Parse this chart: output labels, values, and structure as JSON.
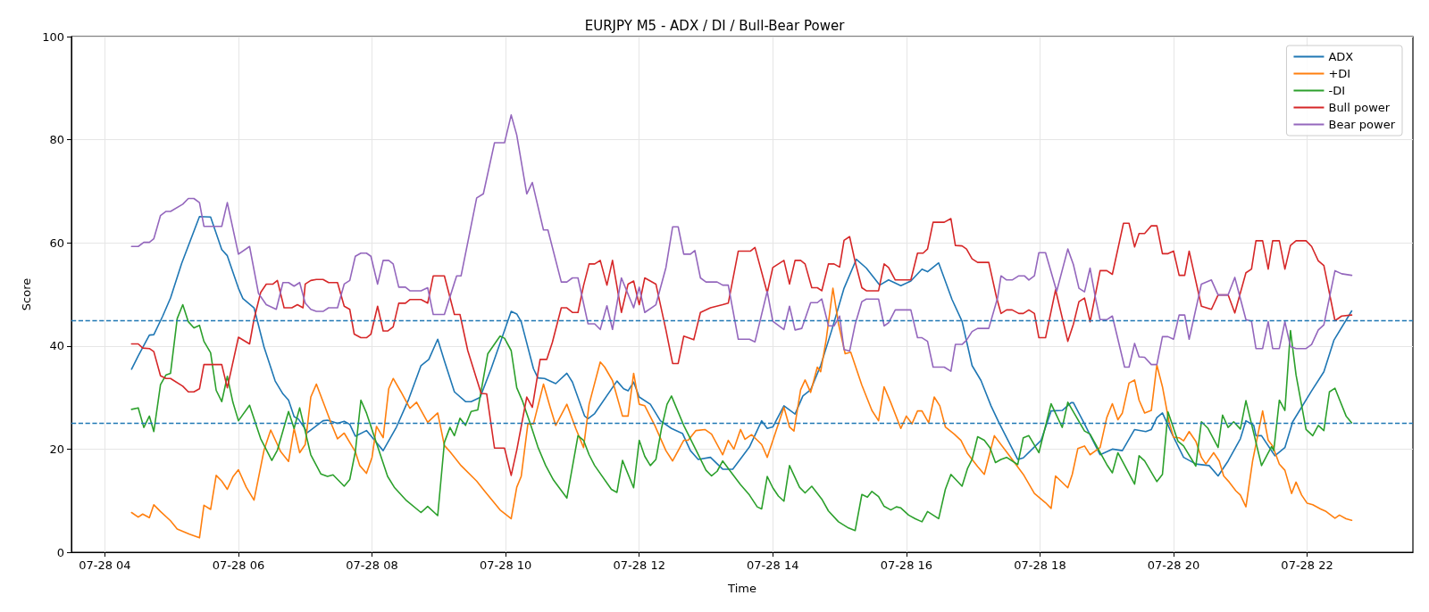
{
  "chart_data": {
    "type": "line",
    "title": "EURJPY M5 - ADX / DI / Bull-Bear Power",
    "xlabel": "Time",
    "ylabel": "Score",
    "xlim": [
      "--07-28T03:30",
      "--07-28T23:35"
    ],
    "ylim": [
      0,
      100
    ],
    "xticks": [
      {
        "value": "--07-28T04:00",
        "label": "07-28 04"
      },
      {
        "value": "--07-28T06:00",
        "label": "07-28 06"
      },
      {
        "value": "--07-28T08:00",
        "label": "07-28 08"
      },
      {
        "value": "--07-28T10:00",
        "label": "07-28 10"
      },
      {
        "value": "--07-28T12:00",
        "label": "07-28 12"
      },
      {
        "value": "--07-28T14:00",
        "label": "07-28 14"
      },
      {
        "value": "--07-28T16:00",
        "label": "07-28 16"
      },
      {
        "value": "--07-28T18:00",
        "label": "07-28 18"
      },
      {
        "value": "--07-28T20:00",
        "label": "07-28 20"
      },
      {
        "value": "--07-28T22:00",
        "label": "07-28 22"
      }
    ],
    "yticks": [
      0,
      20,
      40,
      60,
      80,
      100
    ],
    "grid": true,
    "legend": "top right",
    "marker": "none",
    "line_style": "solid",
    "ref_lines": [
      {
        "axis": "y",
        "value": 45,
        "color": "#1f77b4",
        "line_style": "dashed"
      },
      {
        "axis": "y",
        "value": 25,
        "color": "#1f77b4",
        "line_style": "dashed"
      }
    ],
    "series": [
      {
        "name": "ADX",
        "color": "#1f77b4",
        "x": [
          "--07-28T04:24",
          "--07-28T04:30",
          "--07-28T04:40",
          "--07-28T04:44",
          "--07-28T04:52",
          "--07-28T04:59",
          "--07-28T05:09",
          "--07-28T05:25",
          "--07-28T05:35",
          "--07-28T05:45",
          "--07-28T05:50",
          "--07-28T06:00",
          "--07-28T06:04",
          "--07-28T06:14",
          "--07-28T06:23",
          "--07-28T06:33",
          "--07-28T06:40",
          "--07-28T06:45",
          "--07-28T06:50",
          "--07-28T06:54",
          "--07-28T07:02",
          "--07-28T07:16",
          "--07-28T07:20",
          "--07-28T07:29",
          "--07-28T07:35",
          "--07-28T07:40",
          "--07-28T07:45",
          "--07-28T07:55",
          "--07-28T08:10",
          "--07-28T08:22",
          "--07-28T08:33",
          "--07-28T08:44",
          "--07-28T08:51",
          "--07-28T08:59",
          "--07-28T09:05",
          "--07-28T09:14",
          "--07-28T09:24",
          "--07-28T09:29",
          "--07-28T09:37",
          "--07-28T09:47",
          "--07-28T10:05",
          "--07-28T10:10",
          "--07-28T10:14",
          "--07-28T10:25",
          "--07-28T10:29",
          "--07-28T10:35",
          "--07-28T10:45",
          "--07-28T10:55",
          "--07-28T11:00",
          "--07-28T11:11",
          "--07-28T11:14",
          "--07-28T11:20",
          "--07-28T11:40",
          "--07-28T11:46",
          "--07-28T11:50",
          "--07-28T11:55",
          "--07-28T12:00",
          "--07-28T12:10",
          "--07-28T12:19",
          "--07-28T12:29",
          "--07-28T12:39",
          "--07-28T12:46",
          "--07-28T12:53",
          "--07-28T13:04",
          "--07-28T13:15",
          "--07-28T13:24",
          "--07-28T13:39",
          "--07-28T13:50",
          "--07-28T13:55",
          "--07-28T14:00",
          "--07-28T14:10",
          "--07-28T14:20",
          "--07-28T14:27",
          "--07-28T14:34",
          "--07-28T14:43",
          "--07-28T14:53",
          "--07-28T15:04",
          "--07-28T15:15",
          "--07-28T15:24",
          "--07-28T15:36",
          "--07-28T15:44",
          "--07-28T15:55",
          "--07-28T16:04",
          "--07-28T16:14",
          "--07-28T16:19",
          "--07-28T16:29",
          "--07-28T16:41",
          "--07-28T16:50",
          "--07-28T16:59",
          "--07-28T17:07",
          "--07-28T17:16",
          "--07-28T17:23",
          "--07-28T17:40",
          "--07-28T17:45",
          "--07-28T18:01",
          "--07-28T18:10",
          "--07-28T18:20",
          "--07-28T18:28",
          "--07-28T18:30",
          "--07-28T18:40",
          "--07-28T18:54",
          "--07-28T19:05",
          "--07-28T19:14",
          "--07-28T19:25",
          "--07-28T19:35",
          "--07-28T19:40",
          "--07-28T19:45",
          "--07-28T19:50",
          "--07-28T19:58",
          "--07-28T20:09",
          "--07-28T20:20",
          "--07-28T20:32",
          "--07-28T20:40",
          "--07-28T20:49",
          "--07-28T21:00",
          "--07-28T21:05",
          "--07-28T21:12",
          "--07-28T21:14",
          "--07-28T21:19",
          "--07-28T21:31",
          "--07-28T21:40",
          "--07-28T21:47",
          "--07-28T22:04",
          "--07-28T22:15",
          "--07-28T22:24",
          "--07-28T22:40"
        ],
        "values": [
          35.5,
          38.1,
          42.1,
          42.2,
          45.8,
          49.3,
          56,
          65.1,
          65,
          58.7,
          57.5,
          51.2,
          49.2,
          47.4,
          39.8,
          33.2,
          30.7,
          29.5,
          26.3,
          25.8,
          23.2,
          25.5,
          25.6,
          25,
          25.4,
          24.8,
          22.5,
          23.6,
          19.7,
          24.3,
          29.7,
          36.2,
          37.4,
          41.3,
          37.1,
          31.1,
          29.2,
          29.2,
          30,
          35.6,
          46.7,
          46.2,
          44.7,
          35.6,
          33.8,
          33.7,
          32.7,
          34.7,
          33,
          26.4,
          25.9,
          26.9,
          33.2,
          31.7,
          31.3,
          33,
          30.1,
          28.7,
          25.5,
          24,
          23,
          19.7,
          18,
          18.4,
          16.1,
          16.1,
          20.4,
          25.5,
          24,
          24.3,
          28.4,
          26.8,
          30.3,
          31.5,
          36.2,
          43.1,
          51.2,
          56.8,
          55.1,
          51.8,
          52.8,
          51.7,
          52.6,
          54.9,
          54.4,
          56.1,
          49,
          44.8,
          36.2,
          33.3,
          28.4,
          25.2,
          18,
          18.3,
          21.7,
          27.4,
          27.5,
          29,
          29,
          24.9,
          18.9,
          20,
          19.7,
          23.8,
          23.4,
          23.8,
          26.1,
          27,
          23.2,
          18.4,
          17.1,
          16.8,
          14.8,
          17.7,
          22,
          25.5,
          24.6,
          22.6,
          22.6,
          18.7,
          20.3,
          25.3,
          31.3,
          35,
          41.1,
          46.8
        ]
      },
      {
        "name": "+DI",
        "color": "#ff7f0e",
        "x": [
          "--07-28T04:24",
          "--07-28T04:30",
          "--07-28T04:34",
          "--07-28T04:40",
          "--07-28T04:44",
          "--07-28T04:50",
          "--07-28T04:59",
          "--07-28T05:05",
          "--07-28T05:16",
          "--07-28T05:25",
          "--07-28T05:29",
          "--07-28T05:35",
          "--07-28T05:40",
          "--07-28T05:45",
          "--07-28T05:50",
          "--07-28T05:55",
          "--07-28T06:00",
          "--07-28T06:07",
          "--07-28T06:14",
          "--07-28T06:23",
          "--07-28T06:29",
          "--07-28T06:38",
          "--07-28T06:45",
          "--07-28T06:50",
          "--07-28T06:55",
          "--07-28T07:00",
          "--07-28T07:05",
          "--07-28T07:10",
          "--07-28T07:16",
          "--07-28T07:24",
          "--07-28T07:29",
          "--07-28T07:35",
          "--07-28T07:45",
          "--07-28T07:49",
          "--07-28T07:55",
          "--07-28T08:00",
          "--07-28T08:04",
          "--07-28T08:10",
          "--07-28T08:15",
          "--07-28T08:19",
          "--07-28T08:26",
          "--07-28T08:34",
          "--07-28T08:40",
          "--07-28T08:50",
          "--07-28T08:59",
          "--07-28T09:05",
          "--07-28T09:10",
          "--07-28T09:20",
          "--07-28T09:34",
          "--07-28T09:41",
          "--07-28T09:55",
          "--07-28T10:05",
          "--07-28T10:10",
          "--07-28T10:14",
          "--07-28T10:20",
          "--07-28T10:25",
          "--07-28T10:34",
          "--07-28T10:40",
          "--07-28T10:45",
          "--07-28T10:55",
          "--07-28T11:03",
          "--07-28T11:10",
          "--07-28T11:15",
          "--07-28T11:25",
          "--07-28T11:29",
          "--07-28T11:36",
          "--07-28T11:45",
          "--07-28T11:50",
          "--07-28T11:55",
          "--07-28T12:00",
          "--07-28T12:05",
          "--07-28T12:14",
          "--07-28T12:24",
          "--07-28T12:30",
          "--07-28T12:40",
          "--07-28T12:44",
          "--07-28T12:51",
          "--07-28T12:59",
          "--07-28T13:05",
          "--07-28T13:15",
          "--07-28T13:20",
          "--07-28T13:25",
          "--07-28T13:31",
          "--07-28T13:35",
          "--07-28T13:41",
          "--07-28T13:50",
          "--07-28T13:55",
          "--07-28T14:10",
          "--07-28T14:15",
          "--07-28T14:19",
          "--07-28T14:25",
          "--07-28T14:29",
          "--07-28T14:34",
          "--07-28T14:40",
          "--07-28T14:43",
          "--07-28T14:48",
          "--07-28T14:54",
          "--07-28T14:59",
          "--07-28T15:05",
          "--07-28T15:10",
          "--07-28T15:20",
          "--07-28T15:29",
          "--07-28T15:35",
          "--07-28T15:40",
          "--07-28T15:46",
          "--07-28T15:55",
          "--07-28T16:00",
          "--07-28T16:05",
          "--07-28T16:10",
          "--07-28T16:14",
          "--07-28T16:20",
          "--07-28T16:25",
          "--07-28T16:30",
          "--07-28T16:35",
          "--07-28T16:43",
          "--07-28T16:49",
          "--07-28T16:55",
          "--07-28T17:04",
          "--07-28T17:10",
          "--07-28T17:19",
          "--07-28T17:34",
          "--07-28T17:45",
          "--07-28T17:55",
          "--07-28T18:05",
          "--07-28T18:10",
          "--07-28T18:14",
          "--07-28T18:25",
          "--07-28T18:29",
          "--07-28T18:34",
          "--07-28T18:40",
          "--07-28T18:45",
          "--07-28T18:54",
          "--07-28T19:00",
          "--07-28T19:05",
          "--07-28T19:10",
          "--07-28T19:14",
          "--07-28T19:20",
          "--07-28T19:25",
          "--07-28T19:29",
          "--07-28T19:34",
          "--07-28T19:40",
          "--07-28T19:45",
          "--07-28T19:50",
          "--07-28T19:56",
          "--07-28T20:00",
          "--07-28T20:05",
          "--07-28T20:09",
          "--07-28T20:14",
          "--07-28T20:20",
          "--07-28T20:25",
          "--07-28T20:29",
          "--07-28T20:36",
          "--07-28T20:41",
          "--07-28T20:45",
          "--07-28T20:50",
          "--07-28T20:56",
          "--07-28T21:00",
          "--07-28T21:05",
          "--07-28T21:11",
          "--07-28T21:20",
          "--07-28T21:25",
          "--07-28T21:29",
          "--07-28T21:35",
          "--07-28T21:40",
          "--07-28T21:46",
          "--07-28T21:50",
          "--07-28T21:55",
          "--07-28T22:00",
          "--07-28T22:05",
          "--07-28T22:12",
          "--07-28T22:17",
          "--07-28T22:25",
          "--07-28T22:29",
          "--07-28T22:35",
          "--07-28T22:40"
        ],
        "values": [
          7.7,
          6.8,
          7.4,
          6.7,
          9.2,
          7.9,
          6.1,
          4.5,
          3.5,
          2.8,
          9.1,
          8.3,
          14.9,
          13.8,
          12.2,
          14.6,
          16,
          12.6,
          10.1,
          19.8,
          23.7,
          19.5,
          17.6,
          24,
          19.3,
          20.9,
          30.1,
          32.6,
          29.2,
          24.6,
          22,
          23.1,
          19.5,
          16.8,
          15.3,
          18.4,
          24.4,
          22.2,
          31.7,
          33.7,
          31.1,
          27.9,
          29.1,
          25.2,
          27,
          20.7,
          19.5,
          16.8,
          13.8,
          11.9,
          8.2,
          6.5,
          12.6,
          14.7,
          24.9,
          24.9,
          32.6,
          28.1,
          24.6,
          28.7,
          24,
          20.3,
          28.7,
          36.9,
          35.9,
          33.3,
          26.4,
          26.4,
          34.7,
          28.7,
          28.4,
          24.6,
          19.7,
          17.7,
          21.7,
          21.7,
          23.6,
          23.8,
          22.9,
          18.9,
          21.7,
          20,
          23.8,
          21.9,
          22.8,
          20.9,
          18.4,
          28.1,
          24.3,
          23.5,
          31.5,
          33.4,
          31,
          35.9,
          35,
          41.3,
          51.2,
          44.3,
          38.5,
          38.8,
          32.4,
          27.5,
          25.5,
          32.1,
          29,
          24,
          26.4,
          24.9,
          27.4,
          27.4,
          25.1,
          30.1,
          28.4,
          24.3,
          22.9,
          21.7,
          19.1,
          16.6,
          15.1,
          22.6,
          18.3,
          15.1,
          11.4,
          9.6,
          8.5,
          14.8,
          12.5,
          15.1,
          20.1,
          20.6,
          18.9,
          20.3,
          26.1,
          28.8,
          25.7,
          27,
          32.8,
          33.4,
          29.5,
          27,
          27.5,
          36.3,
          32.1,
          25.2,
          22.3,
          22.2,
          21.6,
          23.4,
          21.5,
          18.4,
          17.1,
          19.3,
          17.7,
          14.8,
          13.6,
          11.9,
          11.1,
          8.8,
          17.7,
          27.4,
          21.7,
          20.6,
          17.1,
          15.9,
          11.4,
          13.6,
          11.1,
          9.5,
          9.2,
          8.4,
          7.9,
          6.6,
          7.2,
          6.5,
          6.2
        ]
      },
      {
        "name": "-DI",
        "color": "#2ca02c",
        "x": [
          "--07-28T04:24",
          "--07-28T04:30",
          "--07-28T04:35",
          "--07-28T04:40",
          "--07-28T04:44",
          "--07-28T04:50",
          "--07-28T04:55",
          "--07-28T04:59",
          "--07-28T05:05",
          "--07-28T05:10",
          "--07-28T05:15",
          "--07-28T05:20",
          "--07-28T05:25",
          "--07-28T05:29",
          "--07-28T05:35",
          "--07-28T05:40",
          "--07-28T05:45",
          "--07-28T05:50",
          "--07-28T05:55",
          "--07-28T06:00",
          "--07-28T06:10",
          "--07-28T06:20",
          "--07-28T06:30",
          "--07-28T06:35",
          "--07-28T06:45",
          "--07-28T06:50",
          "--07-28T06:55",
          "--07-28T07:05",
          "--07-28T07:14",
          "--07-28T07:20",
          "--07-28T07:25",
          "--07-28T07:35",
          "--07-28T07:40",
          "--07-28T07:45",
          "--07-28T07:50",
          "--07-28T07:55",
          "--07-28T08:14",
          "--07-28T08:20",
          "--07-28T08:31",
          "--07-28T08:44",
          "--07-28T08:50",
          "--07-28T08:59",
          "--07-28T09:05",
          "--07-28T09:10",
          "--07-28T09:14",
          "--07-28T09:19",
          "--07-28T09:24",
          "--07-28T09:29",
          "--07-28T09:35",
          "--07-28T09:44",
          "--07-28T09:55",
          "--07-28T09:59",
          "--07-28T10:05",
          "--07-28T10:10",
          "--07-28T10:15",
          "--07-28T10:23",
          "--07-28T10:29",
          "--07-28T10:36",
          "--07-28T10:43",
          "--07-28T10:55",
          "--07-28T11:05",
          "--07-28T11:10",
          "--07-28T11:15",
          "--07-28T11:20",
          "--07-28T11:35",
          "--07-28T11:40",
          "--07-28T11:45",
          "--07-28T11:55",
          "--07-28T12:00",
          "--07-28T12:05",
          "--07-28T12:10",
          "--07-28T12:15",
          "--07-28T12:20",
          "--07-28T12:25",
          "--07-28T12:29",
          "--07-28T12:40",
          "--07-28T12:52",
          "--07-28T13:00",
          "--07-28T13:05",
          "--07-28T13:10",
          "--07-28T13:15",
          "--07-28T13:24",
          "--07-28T13:31",
          "--07-28T13:39",
          "--07-28T13:46",
          "--07-28T13:50",
          "--07-28T13:55",
          "--07-28T14:00",
          "--07-28T14:05",
          "--07-28T14:10",
          "--07-28T14:15",
          "--07-28T14:24",
          "--07-28T14:29",
          "--07-28T14:35",
          "--07-28T14:44",
          "--07-28T14:50",
          "--07-28T14:59",
          "--07-28T15:08",
          "--07-28T15:14",
          "--07-28T15:20",
          "--07-28T15:25",
          "--07-28T15:29",
          "--07-28T15:35",
          "--07-28T15:40",
          "--07-28T15:46",
          "--07-28T15:51",
          "--07-28T15:55",
          "--07-28T16:02",
          "--07-28T16:08",
          "--07-28T16:14",
          "--07-28T16:19",
          "--07-28T16:29",
          "--07-28T16:35",
          "--07-28T16:40",
          "--07-28T16:50",
          "--07-28T16:55",
          "--07-28T16:59",
          "--07-28T17:04",
          "--07-28T17:10",
          "--07-28T17:15",
          "--07-28T17:20",
          "--07-28T17:25",
          "--07-28T17:30",
          "--07-28T17:40",
          "--07-28T17:45",
          "--07-28T17:50",
          "--07-28T17:59",
          "--07-28T18:10",
          "--07-28T18:20",
          "--07-28T18:25",
          "--07-28T18:40",
          "--07-28T18:45",
          "--07-28T19:00",
          "--07-28T19:05",
          "--07-28T19:10",
          "--07-28T19:25",
          "--07-28T19:29",
          "--07-28T19:34",
          "--07-28T19:45",
          "--07-28T19:50",
          "--07-28T19:55",
          "--07-28T20:04",
          "--07-28T20:09",
          "--07-28T20:20",
          "--07-28T20:25",
          "--07-28T20:31",
          "--07-28T20:40",
          "--07-28T20:44",
          "--07-28T20:49",
          "--07-28T20:54",
          "--07-28T21:00",
          "--07-28T21:05",
          "--07-28T21:19",
          "--07-28T21:28",
          "--07-28T21:30",
          "--07-28T21:35",
          "--07-28T21:40",
          "--07-28T21:45",
          "--07-28T21:50",
          "--07-28T21:59",
          "--07-28T22:05",
          "--07-28T22:10",
          "--07-28T22:15",
          "--07-28T22:20",
          "--07-28T22:25",
          "--07-28T22:35",
          "--07-28T22:40"
        ],
        "values": [
          27.7,
          28,
          24.2,
          26.4,
          23.4,
          32.5,
          34.4,
          34.7,
          45.3,
          48,
          44.7,
          43.5,
          44,
          40.9,
          38.7,
          31.4,
          29.2,
          34.1,
          29.1,
          25.5,
          28.5,
          22,
          17.8,
          19.8,
          27.3,
          24,
          28,
          18.9,
          15.2,
          14.7,
          15,
          12.8,
          14.1,
          19.5,
          29.5,
          27,
          14.7,
          12.6,
          10,
          7.7,
          8.9,
          7.1,
          21.3,
          24.2,
          22.6,
          26,
          24.6,
          27.3,
          27.6,
          38.5,
          41.9,
          41.5,
          39.1,
          31.9,
          29.4,
          24.4,
          20.4,
          16.8,
          14,
          10.5,
          22.6,
          21.7,
          18.9,
          16.8,
          12.2,
          11.6,
          17.8,
          12.5,
          21.7,
          18.6,
          16.8,
          18,
          24,
          28.7,
          30.3,
          24.6,
          19.4,
          15.9,
          14.8,
          15.7,
          17.7,
          15.1,
          13.1,
          11.1,
          8.8,
          8.4,
          14.7,
          12.5,
          10.9,
          9.9,
          16.8,
          12.6,
          11.5,
          12.8,
          10.3,
          8,
          5.9,
          4.7,
          4.2,
          11.2,
          10.7,
          11.8,
          10.8,
          8.9,
          8.2,
          8.8,
          8.6,
          7.2,
          6.5,
          5.9,
          7.9,
          6.5,
          12.2,
          15.1,
          12.8,
          16.3,
          18,
          22.4,
          21.7,
          20.3,
          17.4,
          18,
          18.4,
          17,
          22.2,
          22.6,
          19.3,
          28.8,
          24.2,
          29.1,
          23.5,
          22.9,
          17,
          15.4,
          19.3,
          13.2,
          18.7,
          17.7,
          13.7,
          15.1,
          27.2,
          21.5,
          20.6,
          16.7,
          25.3,
          24,
          20.3,
          26.6,
          24.2,
          25.3,
          23.9,
          29.4,
          16.8,
          20.5,
          19.7,
          29.5,
          27.5,
          43,
          34.4,
          23.8,
          22.6,
          24.6,
          23.6,
          31.1,
          31.8,
          26.4,
          25.1
        ]
      },
      {
        "name": "Bull power",
        "color": "#d62728",
        "x": [
          "--07-28T04:24",
          "--07-28T04:30",
          "--07-28T04:34",
          "--07-28T04:40",
          "--07-28T04:44",
          "--07-28T04:50",
          "--07-28T04:55",
          "--07-28T04:59",
          "--07-28T05:10",
          "--07-28T05:15",
          "--07-28T05:20",
          "--07-28T05:25",
          "--07-28T05:29",
          "--07-28T05:45",
          "--07-28T05:50",
          "--07-28T06:00",
          "--07-28T06:10",
          "--07-28T06:14",
          "--07-28T06:20",
          "--07-28T06:25",
          "--07-28T06:31",
          "--07-28T06:35",
          "--07-28T06:41",
          "--07-28T06:48",
          "--07-28T06:53",
          "--07-28T06:58",
          "--07-28T07:00",
          "--07-28T07:05",
          "--07-28T07:10",
          "--07-28T07:16",
          "--07-28T07:21",
          "--07-28T07:29",
          "--07-28T07:35",
          "--07-28T07:40",
          "--07-28T07:44",
          "--07-28T07:50",
          "--07-28T07:55",
          "--07-28T07:59",
          "--07-28T08:05",
          "--07-28T08:10",
          "--07-28T08:14",
          "--07-28T08:19",
          "--07-28T08:24",
          "--07-28T08:30",
          "--07-28T08:34",
          "--07-28T08:44",
          "--07-28T08:50",
          "--07-28T08:55",
          "--07-28T09:05",
          "--07-28T09:14",
          "--07-28T09:19",
          "--07-28T09:26",
          "--07-28T09:38",
          "--07-28T09:43",
          "--07-28T09:50",
          "--07-28T09:59",
          "--07-28T10:05",
          "--07-28T10:10",
          "--07-28T10:19",
          "--07-28T10:24",
          "--07-28T10:31",
          "--07-28T10:37",
          "--07-28T10:42",
          "--07-28T10:50",
          "--07-28T10:55",
          "--07-28T11:00",
          "--07-28T11:05",
          "--07-28T11:10",
          "--07-28T11:15",
          "--07-28T11:20",
          "--07-28T11:25",
          "--07-28T11:31",
          "--07-28T11:36",
          "--07-28T11:44",
          "--07-28T11:50",
          "--07-28T11:55",
          "--07-28T12:00",
          "--07-28T12:05",
          "--07-28T12:15",
          "--07-28T12:24",
          "--07-28T12:30",
          "--07-28T12:35",
          "--07-28T12:40",
          "--07-28T12:49",
          "--07-28T12:55",
          "--07-28T13:04",
          "--07-28T13:15",
          "--07-28T13:20",
          "--07-28T13:29",
          "--07-28T13:40",
          "--07-28T13:44",
          "--07-28T13:55",
          "--07-28T14:00",
          "--07-28T14:10",
          "--07-28T14:15",
          "--07-28T14:20",
          "--07-28T14:25",
          "--07-28T14:29",
          "--07-28T14:35",
          "--07-28T14:40",
          "--07-28T14:44",
          "--07-28T14:50",
          "--07-28T14:55",
          "--07-28T15:00",
          "--07-28T15:04",
          "--07-28T15:09",
          "--07-28T15:14",
          "--07-28T15:20",
          "--07-28T15:24",
          "--07-28T15:35",
          "--07-28T15:40",
          "--07-28T15:44",
          "--07-28T15:50",
          "--07-28T16:04",
          "--07-28T16:10",
          "--07-28T16:15",
          "--07-28T16:19",
          "--07-28T16:24",
          "--07-28T16:34",
          "--07-28T16:40",
          "--07-28T16:44",
          "--07-28T16:50",
          "--07-28T16:54",
          "--07-28T16:59",
          "--07-28T17:04",
          "--07-28T17:14",
          "--07-28T17:21",
          "--07-28T17:25",
          "--07-28T17:30",
          "--07-28T17:35",
          "--07-28T17:41",
          "--07-28T17:45",
          "--07-28T17:50",
          "--07-28T17:55",
          "--07-28T17:59",
          "--07-28T18:05",
          "--07-28T18:14",
          "--07-28T18:25",
          "--07-28T18:30",
          "--07-28T18:35",
          "--07-28T18:40",
          "--07-28T18:45",
          "--07-28T18:54",
          "--07-28T19:00",
          "--07-28T19:05",
          "--07-28T19:15",
          "--07-28T19:20",
          "--07-28T19:25",
          "--07-28T19:29",
          "--07-28T19:34",
          "--07-28T19:40",
          "--07-28T19:45",
          "--07-28T19:50",
          "--07-28T19:55",
          "--07-28T20:00",
          "--07-28T20:05",
          "--07-28T20:10",
          "--07-28T20:14",
          "--07-28T20:25",
          "--07-28T20:34",
          "--07-28T20:40",
          "--07-28T20:49",
          "--07-28T20:55",
          "--07-28T21:05",
          "--07-28T21:10",
          "--07-28T21:14",
          "--07-28T21:20",
          "--07-28T21:25",
          "--07-28T21:29",
          "--07-28T21:35",
          "--07-28T21:40",
          "--07-28T21:45",
          "--07-28T21:50",
          "--07-28T21:59",
          "--07-28T22:04",
          "--07-28T22:10",
          "--07-28T22:15",
          "--07-28T22:25",
          "--07-28T22:31",
          "--07-28T22:40"
        ],
        "values": [
          40.4,
          40.4,
          39.6,
          39.5,
          38.9,
          34.2,
          33.7,
          33.7,
          32.2,
          31.1,
          31.1,
          31.7,
          36.4,
          36.4,
          31.9,
          41.7,
          40.4,
          45.2,
          50.4,
          52,
          52,
          52.7,
          47.4,
          47.4,
          48,
          47.4,
          52,
          52.7,
          52.9,
          52.9,
          52.3,
          52.3,
          47.7,
          47.1,
          42.3,
          41.6,
          41.6,
          42.3,
          47.7,
          42.9,
          42.9,
          43.7,
          48.3,
          48.3,
          49,
          49,
          48.3,
          53.6,
          53.6,
          46.1,
          46.1,
          39.1,
          30.8,
          30.7,
          20.2,
          20.2,
          14.9,
          19.8,
          30.1,
          28.1,
          37.4,
          37.4,
          40.7,
          47.4,
          47.4,
          46.5,
          46.5,
          51.7,
          55.9,
          55.9,
          56.6,
          51.8,
          56.6,
          46.5,
          52,
          52.6,
          48,
          53.2,
          52,
          43.1,
          36.6,
          36.6,
          41.9,
          41.2,
          46.5,
          47.4,
          48,
          48.3,
          58.4,
          58.4,
          59.1,
          50.3,
          55.2,
          56.6,
          52,
          56.6,
          56.6,
          55.9,
          51.3,
          51.3,
          50.7,
          55.9,
          55.9,
          55.3,
          60.5,
          61.2,
          56.3,
          51.3,
          50.7,
          50.7,
          55.9,
          55.2,
          52.8,
          52.8,
          58,
          58,
          58.8,
          64,
          64,
          64.7,
          59.5,
          59.4,
          58.8,
          56.9,
          56.2,
          56.2,
          49.4,
          46.3,
          47,
          47,
          46.3,
          46.3,
          47,
          46.3,
          41.6,
          41.6,
          50.9,
          40.9,
          44.2,
          48.6,
          49.3,
          44.7,
          54.6,
          54.6,
          53.9,
          63.8,
          63.8,
          59.2,
          61.8,
          61.8,
          63.3,
          63.3,
          57.9,
          57.9,
          58.4,
          53.7,
          53.7,
          58.4,
          47.7,
          47.1,
          49.9,
          49.9,
          46.4,
          54.2,
          54.9,
          60.4,
          60.4,
          54.9,
          60.4,
          60.4,
          54.9,
          59.5,
          60.4,
          60.4,
          59.3,
          56.5,
          55.6,
          44.9,
          45.8,
          46
        ]
      },
      {
        "name": "Bear power",
        "color": "#9467bd",
        "x": [
          "--07-28T04:24",
          "--07-28T04:30",
          "--07-28T04:35",
          "--07-28T04:40",
          "--07-28T04:44",
          "--07-28T04:50",
          "--07-28T04:55",
          "--07-28T04:59",
          "--07-28T05:10",
          "--07-28T05:15",
          "--07-28T05:20",
          "--07-28T05:25",
          "--07-28T05:29",
          "--07-28T05:45",
          "--07-28T05:50",
          "--07-28T06:00",
          "--07-28T06:10",
          "--07-28T06:18",
          "--07-28T06:25",
          "--07-28T06:34",
          "--07-28T06:40",
          "--07-28T06:45",
          "--07-28T06:50",
          "--07-28T06:55",
          "--07-28T07:00",
          "--07-28T07:05",
          "--07-28T07:10",
          "--07-28T07:16",
          "--07-28T07:21",
          "--07-28T07:29",
          "--07-28T07:35",
          "--07-28T07:40",
          "--07-28T07:45",
          "--07-28T07:50",
          "--07-28T07:55",
          "--07-28T07:59",
          "--07-28T08:05",
          "--07-28T08:10",
          "--07-28T08:15",
          "--07-28T08:19",
          "--07-28T08:24",
          "--07-28T08:30",
          "--07-28T08:34",
          "--07-28T08:44",
          "--07-28T08:50",
          "--07-28T08:55",
          "--07-28T09:05",
          "--07-28T09:16",
          "--07-28T09:20",
          "--07-28T09:34",
          "--07-28T09:40",
          "--07-28T09:50",
          "--07-28T09:59",
          "--07-28T10:05",
          "--07-28T10:10",
          "--07-28T10:19",
          "--07-28T10:24",
          "--07-28T10:34",
          "--07-28T10:38",
          "--07-28T10:50",
          "--07-28T10:55",
          "--07-28T11:00",
          "--07-28T11:05",
          "--07-28T11:14",
          "--07-28T11:20",
          "--07-28T11:25",
          "--07-28T11:31",
          "--07-28T11:36",
          "--07-28T11:44",
          "--07-28T11:55",
          "--07-28T12:00",
          "--07-28T12:05",
          "--07-28T12:15",
          "--07-28T12:24",
          "--07-28T12:30",
          "--07-28T12:35",
          "--07-28T12:40",
          "--07-28T12:46",
          "--07-28T12:50",
          "--07-28T12:55",
          "--07-28T13:00",
          "--07-28T13:10",
          "--07-28T13:15",
          "--07-28T13:20",
          "--07-28T13:29",
          "--07-28T13:39",
          "--07-28T13:44",
          "--07-28T13:55",
          "--07-28T14:00",
          "--07-28T14:10",
          "--07-28T14:15",
          "--07-28T14:20",
          "--07-28T14:26",
          "--07-28T14:34",
          "--07-28T14:40",
          "--07-28T14:44",
          "--07-28T14:50",
          "--07-28T14:55",
          "--07-28T15:00",
          "--07-28T15:04",
          "--07-28T15:09",
          "--07-28T15:14",
          "--07-28T15:20",
          "--07-28T15:24",
          "--07-28T15:35",
          "--07-28T15:40",
          "--07-28T15:44",
          "--07-28T15:50",
          "--07-28T16:04",
          "--07-28T16:10",
          "--07-28T16:14",
          "--07-28T16:19",
          "--07-28T16:24",
          "--07-28T16:34",
          "--07-28T16:40",
          "--07-28T16:44",
          "--07-28T16:50",
          "--07-28T16:54",
          "--07-28T16:59",
          "--07-28T17:04",
          "--07-28T17:14",
          "--07-28T17:22",
          "--07-28T17:25",
          "--07-28T17:30",
          "--07-28T17:35",
          "--07-28T17:41",
          "--07-28T17:46",
          "--07-28T17:50",
          "--07-28T17:55",
          "--07-28T17:59",
          "--07-28T18:05",
          "--07-28T18:15",
          "--07-28T18:25",
          "--07-28T18:30",
          "--07-28T18:35",
          "--07-28T18:40",
          "--07-28T18:45",
          "--07-28T18:50",
          "--07-28T18:54",
          "--07-28T19:00",
          "--07-28T19:05",
          "--07-28T19:16",
          "--07-28T19:20",
          "--07-28T19:25",
          "--07-28T19:29",
          "--07-28T19:34",
          "--07-28T19:40",
          "--07-28T19:45",
          "--07-28T19:50",
          "--07-28T19:55",
          "--07-28T20:00",
          "--07-28T20:05",
          "--07-28T20:10",
          "--07-28T20:14",
          "--07-28T20:25",
          "--07-28T20:34",
          "--07-28T20:40",
          "--07-28T20:49",
          "--07-28T20:55",
          "--07-28T21:05",
          "--07-28T21:10",
          "--07-28T21:14",
          "--07-28T21:20",
          "--07-28T21:25",
          "--07-28T21:29",
          "--07-28T21:35",
          "--07-28T21:40",
          "--07-28T21:45",
          "--07-28T21:50",
          "--07-28T21:59",
          "--07-28T22:04",
          "--07-28T22:10",
          "--07-28T22:15",
          "--07-28T22:25",
          "--07-28T22:31",
          "--07-28T22:40"
        ],
        "values": [
          59.3,
          59.3,
          60.1,
          60.1,
          60.8,
          65.3,
          66.1,
          66.1,
          67.5,
          68.6,
          68.6,
          67.8,
          63.2,
          63.2,
          67.8,
          57.8,
          59.3,
          50.2,
          48,
          47.1,
          52.3,
          52.3,
          51.6,
          52.3,
          48.3,
          47.1,
          46.7,
          46.7,
          47.4,
          47.4,
          52,
          52.7,
          57.4,
          58,
          58,
          57.4,
          52,
          56.6,
          56.6,
          55.9,
          51.4,
          51.4,
          50.7,
          50.7,
          51.3,
          46.1,
          46.1,
          53.6,
          53.6,
          68.7,
          69.5,
          79.4,
          79.4,
          84.8,
          80.9,
          69.5,
          71.7,
          62.5,
          62.5,
          52.4,
          52.4,
          53.2,
          53.2,
          44.3,
          44.3,
          43.2,
          47.8,
          43.2,
          53.2,
          47.4,
          51.4,
          46.5,
          48,
          55.2,
          63.1,
          63.1,
          57.8,
          57.8,
          58.5,
          53.2,
          52.4,
          52.4,
          51.8,
          51.8,
          41.3,
          41.3,
          40.8,
          50.6,
          44.8,
          43.2,
          47.7,
          43.1,
          43.4,
          48.4,
          48.4,
          49.1,
          43.9,
          43.9,
          45.8,
          39.3,
          39,
          44.2,
          48.6,
          49.1,
          49.1,
          43.9,
          44.5,
          47,
          47,
          41.6,
          41.6,
          40.9,
          35.9,
          35.9,
          35.1,
          40.3,
          40.3,
          41.1,
          42.8,
          43.4,
          43.4,
          49.4,
          53.6,
          52.8,
          52.8,
          53.6,
          53.6,
          52.8,
          53.6,
          58.1,
          58.1,
          50.6,
          58.8,
          55.8,
          51.2,
          50.5,
          55.1,
          49.1,
          45.1,
          45.1,
          45.8,
          35.9,
          35.9,
          40.5,
          37.9,
          37.8,
          36.4,
          36.4,
          41.8,
          41.8,
          41.3,
          46,
          46,
          41.3,
          52,
          52.8,
          49.9,
          49.9,
          53.3,
          45.1,
          44.8,
          39.5,
          39.5,
          44.7,
          39.5,
          39.5,
          44.7,
          39.9,
          39.5,
          39.5,
          40.3,
          43.1,
          44.1,
          54.6,
          54,
          53.7
        ]
      }
    ]
  }
}
